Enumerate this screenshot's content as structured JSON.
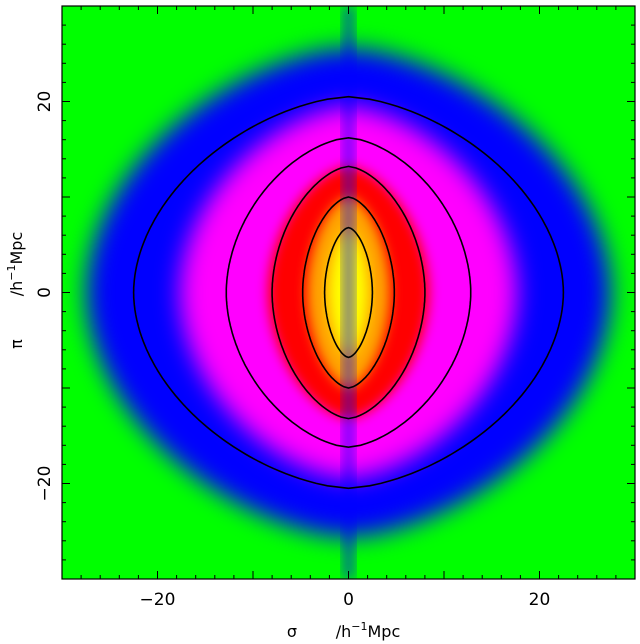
{
  "chart_data": {
    "type": "heatmap",
    "title": "",
    "x_axis": {
      "symbol": "σ",
      "unit_prefix": "/h",
      "unit_exponent": "−1",
      "unit_suffix": "Mpc",
      "range": [
        -30,
        30
      ],
      "ticks": [
        -20,
        0,
        20
      ],
      "tick_labels": [
        "−20",
        "0",
        "20"
      ]
    },
    "y_axis": {
      "symbol": "π",
      "unit_prefix": "/h",
      "unit_exponent": "−1",
      "unit_suffix": "Mpc",
      "range": [
        -30,
        30
      ],
      "ticks": [
        -20,
        0,
        20
      ],
      "tick_labels": [
        "−20",
        "0",
        "20"
      ]
    },
    "colormap": [
      "#00ff00",
      "#0000ff",
      "#ff00ff",
      "#ff0000",
      "#ffa500",
      "#ffff00"
    ],
    "colormap_order": "low to high",
    "contours": [
      {
        "level": 1,
        "half_width_sigma": 22.5,
        "half_height_pi": 20.5
      },
      {
        "level": 2,
        "half_width_sigma": 12.8,
        "half_height_pi": 16.2
      },
      {
        "level": 3,
        "half_width_sigma": 8.0,
        "half_height_pi": 13.2
      },
      {
        "level": 4,
        "half_width_sigma": 4.8,
        "half_height_pi": 10.0
      },
      {
        "level": 5,
        "half_width_sigma": 2.5,
        "half_height_pi": 6.8
      }
    ],
    "contour_color": "#000000",
    "grid": false,
    "legend": "none"
  }
}
